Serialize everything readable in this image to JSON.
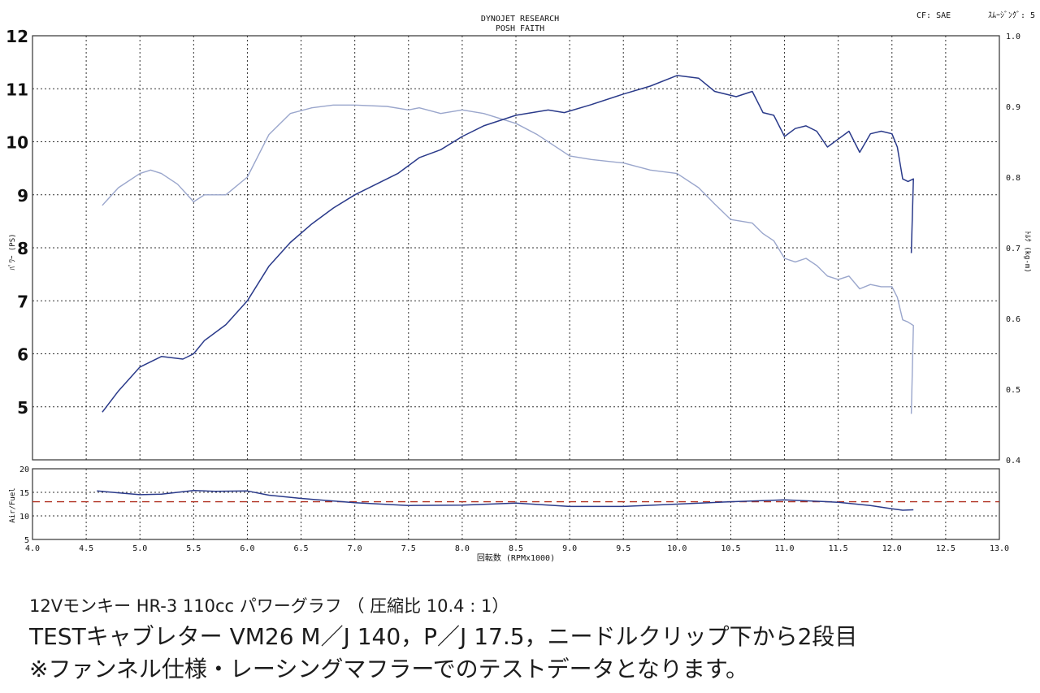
{
  "header": {
    "title_line1": "DYNOJET RESEARCH",
    "title_line2": "POSH FAITH",
    "cf_text": "CF: SAE",
    "smoothing_text": "ｽﾑｰｼﾞﾝｸﾞ: 5"
  },
  "captions": {
    "line1": "12Vモンキー HR-3 110cc パワーグラフ （ 圧縮比 10.4 : 1）",
    "line2": "TESTキャブレター VM26 M／J 140，P／J 17.5，ニードルクリップ下から2段目",
    "line3": "※ファンネル仕様・レーシングマフラーでのテストデータとなります。"
  },
  "colors": {
    "power": "#2a3a8a",
    "torque": "#9aa6cc",
    "af_line": "#2a3a8a",
    "af_ref": "#b03020",
    "grid": "#333333",
    "frame": "#333333"
  },
  "chart_data": [
    {
      "type": "line",
      "id": "main",
      "xlabel": "回転数 (RPMx1000)",
      "ylabel_left": "ﾊﾟﾜｰ (PS)",
      "ylabel_right": "ﾄﾙｸ (kg-m)",
      "xlim": [
        4.0,
        13.0
      ],
      "ylim_left": [
        4.0,
        12.0
      ],
      "ylim_right": [
        0.4,
        1.0
      ],
      "grid": true,
      "x_ticks": [
        4.0,
        4.5,
        5.0,
        5.5,
        6.0,
        6.5,
        7.0,
        7.5,
        8.0,
        8.5,
        9.0,
        9.5,
        10.0,
        10.5,
        11.0,
        11.5,
        12.0,
        12.5,
        13.0
      ],
      "x_tick_labels": [
        "4.0",
        "4.5",
        "5.0",
        "5.5",
        "6.0",
        "6.5",
        "7.0",
        "7.5",
        "8.0",
        "8.5",
        "9.0",
        "9.5",
        "10.0",
        "10.5",
        "11.0",
        "11.5",
        "12.0",
        "12.5",
        "13.0"
      ],
      "y_left_ticks": [
        5,
        6,
        7,
        8,
        9,
        10,
        11,
        12
      ],
      "y_left_tick_labels": [
        "5",
        "6",
        "7",
        "8",
        "9",
        "10",
        "11",
        "12"
      ],
      "y_right_ticks": [
        0.4,
        0.5,
        0.6,
        0.7,
        0.8,
        0.9,
        1.0
      ],
      "y_right_tick_labels": [
        "0.4",
        "0.5",
        "0.6",
        "0.7",
        "0.8",
        "0.9",
        "1.0"
      ],
      "series": [
        {
          "key": "power",
          "axis": "left",
          "x": [
            4.65,
            4.8,
            5.0,
            5.2,
            5.4,
            5.5,
            5.6,
            5.8,
            6.0,
            6.2,
            6.4,
            6.6,
            6.8,
            7.0,
            7.2,
            7.4,
            7.6,
            7.8,
            8.0,
            8.2,
            8.5,
            8.8,
            8.95,
            9.2,
            9.5,
            9.75,
            10.0,
            10.2,
            10.35,
            10.55,
            10.7,
            10.8,
            10.9,
            11.0,
            11.1,
            11.2,
            11.3,
            11.4,
            11.5,
            11.6,
            11.7,
            11.8,
            11.9,
            12.0,
            12.05,
            12.1,
            12.15,
            12.2,
            12.18
          ],
          "y": [
            4.9,
            5.3,
            5.75,
            5.95,
            5.9,
            6.0,
            6.25,
            6.55,
            7.0,
            7.65,
            8.1,
            8.45,
            8.75,
            9.0,
            9.2,
            9.4,
            9.7,
            9.85,
            10.1,
            10.3,
            10.5,
            10.6,
            10.55,
            10.7,
            10.9,
            11.05,
            11.25,
            11.2,
            10.95,
            10.85,
            10.95,
            10.55,
            10.5,
            10.1,
            10.25,
            10.3,
            10.2,
            9.9,
            10.05,
            10.2,
            9.8,
            10.15,
            10.2,
            10.15,
            9.9,
            9.3,
            9.25,
            9.3,
            7.9
          ]
        },
        {
          "key": "torque",
          "axis": "right",
          "x": [
            4.65,
            4.8,
            5.0,
            5.1,
            5.2,
            5.35,
            5.5,
            5.6,
            5.8,
            6.0,
            6.2,
            6.4,
            6.6,
            6.8,
            7.0,
            7.3,
            7.5,
            7.6,
            7.8,
            8.0,
            8.2,
            8.5,
            8.7,
            8.9,
            9.0,
            9.2,
            9.5,
            9.75,
            10.0,
            10.2,
            10.35,
            10.5,
            10.7,
            10.8,
            10.9,
            11.0,
            11.1,
            11.2,
            11.3,
            11.4,
            11.5,
            11.6,
            11.7,
            11.8,
            11.9,
            12.0,
            12.05,
            12.1,
            12.15,
            12.2,
            12.18
          ],
          "y": [
            0.76,
            0.785,
            0.805,
            0.81,
            0.805,
            0.79,
            0.765,
            0.775,
            0.775,
            0.8,
            0.86,
            0.89,
            0.898,
            0.902,
            0.902,
            0.9,
            0.895,
            0.898,
            0.89,
            0.895,
            0.89,
            0.876,
            0.86,
            0.84,
            0.83,
            0.825,
            0.82,
            0.81,
            0.805,
            0.785,
            0.762,
            0.74,
            0.735,
            0.72,
            0.71,
            0.685,
            0.68,
            0.685,
            0.675,
            0.66,
            0.655,
            0.66,
            0.642,
            0.648,
            0.645,
            0.645,
            0.63,
            0.598,
            0.595,
            0.59,
            0.465
          ]
        }
      ]
    },
    {
      "type": "line",
      "id": "airfuel",
      "ylabel": "Air/Fuel",
      "xlim": [
        4.0,
        13.0
      ],
      "ylim": [
        5,
        20
      ],
      "grid": true,
      "y_ticks": [
        5,
        10,
        15,
        20
      ],
      "y_tick_labels": [
        "5",
        "10",
        "15",
        "20"
      ],
      "reference_value": 13.0,
      "series": [
        {
          "key": "af",
          "x": [
            4.6,
            4.8,
            5.0,
            5.2,
            5.5,
            5.7,
            6.0,
            6.2,
            6.5,
            7.0,
            7.5,
            8.0,
            8.5,
            9.0,
            9.5,
            10.0,
            10.5,
            11.0,
            11.5,
            11.8,
            12.0,
            12.1,
            12.2
          ],
          "y": [
            15.3,
            14.9,
            14.5,
            14.6,
            15.4,
            15.2,
            15.3,
            14.4,
            13.7,
            12.8,
            12.2,
            12.3,
            12.7,
            12.0,
            12.0,
            12.5,
            13.0,
            13.4,
            12.9,
            12.2,
            11.5,
            11.2,
            11.3
          ]
        }
      ]
    }
  ]
}
